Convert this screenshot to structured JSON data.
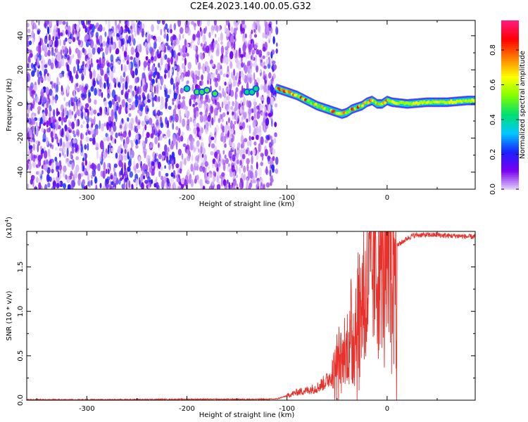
{
  "title": "C2E4.2023.140.00.05.G32",
  "chart_data": [
    {
      "type": "heatmap",
      "xlabel": "Height of straight line (km)",
      "ylabel": "Frequency (Hz)",
      "xlim": [
        -360,
        88
      ],
      "ylim": [
        -50,
        49
      ],
      "xticks": [
        -300,
        -200,
        -100,
        0
      ],
      "yticks": [
        -40,
        -20,
        0,
        20,
        40
      ],
      "colorbar": {
        "label": "Normalized spectral amplitude",
        "range": [
          0,
          0.97
        ],
        "ticks": [
          0.0,
          0.2,
          0.4,
          0.6,
          0.8
        ],
        "colors": [
          "#e4d4f8",
          "#7a00f0",
          "#1a20ff",
          "#00c8ff",
          "#00e070",
          "#80ff00",
          "#ffff00",
          "#ff8000",
          "#ff0000",
          "#ff1a80"
        ]
      },
      "noise_region": {
        "x_range": [
          -360,
          -110
        ],
        "density": "high"
      },
      "signal_track": {
        "x": [
          -200,
          -190,
          -180,
          -170,
          -140,
          -130,
          -110,
          -100,
          -90,
          -80,
          -70,
          -60,
          -50,
          -45,
          -40,
          -35,
          -30,
          -25,
          -20,
          -15,
          -10,
          -5,
          0,
          5,
          20,
          40,
          60,
          80,
          88
        ],
        "y": [
          9,
          7,
          7,
          7,
          7,
          8,
          9,
          7,
          5,
          2,
          -1,
          -3,
          -5,
          -6,
          -5,
          -3,
          -2,
          -1,
          1,
          2,
          0,
          0,
          2,
          1,
          0,
          1,
          1,
          2,
          2
        ]
      },
      "grid": false
    },
    {
      "type": "line",
      "xlabel": "Height of straight line (km)",
      "ylabel": "SNR (10 * v/v)",
      "yscale_label": "(x10",
      "yscale_exp": "4",
      "xlim": [
        -360,
        88
      ],
      "ylim": [
        0,
        1.9
      ],
      "xticks": [
        -300,
        -200,
        -100,
        0
      ],
      "yticks": [
        0.0,
        0.5,
        1.0,
        1.5
      ],
      "yticklabels": [
        "0.0",
        "0.5",
        "1.0",
        "1.5"
      ],
      "color": "#e8312a",
      "series": [
        {
          "x": [
            -360,
            -300,
            -200,
            -120,
            -110,
            -100,
            -90,
            -80,
            -70,
            -60,
            -55,
            -50,
            -45,
            -40,
            -35,
            -30,
            -25,
            -20,
            -15,
            -10,
            -5,
            0,
            5,
            10,
            15,
            20,
            25,
            30,
            40,
            50,
            60,
            70,
            80,
            88
          ],
          "y": [
            0.005,
            0.005,
            0.01,
            0.01,
            0.015,
            0.05,
            0.09,
            0.11,
            0.14,
            0.22,
            0.3,
            0.42,
            0.45,
            0.56,
            0.72,
            0.9,
            1.12,
            1.28,
            1.42,
            1.48,
            1.55,
            1.6,
            1.7,
            1.74,
            1.78,
            1.82,
            1.85,
            1.86,
            1.86,
            1.86,
            1.85,
            1.85,
            1.84,
            1.84
          ]
        }
      ],
      "grid": false
    }
  ]
}
